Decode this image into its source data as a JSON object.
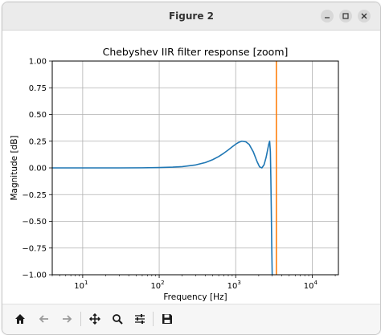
{
  "window": {
    "title": "Figure 2",
    "controls": [
      "minimize",
      "maximize",
      "close"
    ]
  },
  "toolbar": {
    "buttons": [
      {
        "name": "home-icon",
        "enabled": true
      },
      {
        "name": "back-arrow-icon",
        "enabled": false
      },
      {
        "name": "forward-arrow-icon",
        "enabled": false
      },
      {
        "name": "pan-icon",
        "enabled": true
      },
      {
        "name": "zoom-icon",
        "enabled": true
      },
      {
        "name": "configure-subplots-icon",
        "enabled": true
      },
      {
        "name": "save-icon",
        "enabled": true
      }
    ]
  },
  "chart_data": {
    "type": "line",
    "title": "Chebyshev IIR filter response [zoom]",
    "xlabel": "Frequency [Hz]",
    "ylabel": "Magnitude [dB]",
    "xscale": "log",
    "xlim": [
      4,
      22000
    ],
    "ylim": [
      -1.0,
      1.0
    ],
    "xticks": [
      10,
      100,
      1000,
      10000
    ],
    "xtick_labels": [
      {
        "base": "10",
        "exp": "1"
      },
      {
        "base": "10",
        "exp": "2"
      },
      {
        "base": "10",
        "exp": "3"
      },
      {
        "base": "10",
        "exp": "4"
      }
    ],
    "yticks": [
      1.0,
      0.75,
      0.5,
      0.25,
      0.0,
      -0.25,
      -0.5,
      -0.75,
      -1.0
    ],
    "ytick_labels": [
      "1.00",
      "0.75",
      "0.50",
      "0.25",
      "0.00",
      "−0.25",
      "−0.50",
      "−0.75",
      "−1.00"
    ],
    "grid": true,
    "series": [
      {
        "color": "#1f77b4",
        "x": [
          4,
          10,
          30,
          60,
          100,
          150,
          200,
          300,
          400,
          500,
          600,
          700,
          800,
          900,
          1000,
          1100,
          1200,
          1350,
          1500,
          1700,
          1900,
          2050,
          2200,
          2350,
          2500,
          2600,
          2700,
          2780,
          2840,
          2880,
          2920,
          2960,
          3000
        ],
        "y": [
          0.0,
          0.0,
          0.0,
          0.001,
          0.003,
          0.007,
          0.012,
          0.028,
          0.05,
          0.077,
          0.107,
          0.138,
          0.168,
          0.197,
          0.222,
          0.24,
          0.25,
          0.245,
          0.22,
          0.15,
          0.06,
          0.01,
          0.0,
          0.03,
          0.1,
          0.16,
          0.22,
          0.25,
          0.15,
          -0.1,
          -0.4,
          -0.75,
          -1.0
        ]
      },
      {
        "color": "#ff7f0e",
        "x": [
          3400,
          3400
        ],
        "y": [
          -1.0,
          1.0
        ]
      }
    ]
  }
}
